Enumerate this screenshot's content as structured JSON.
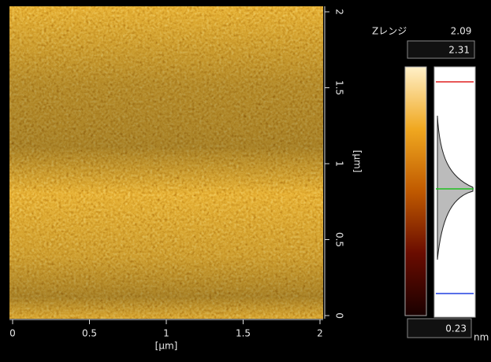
{
  "image": {
    "x_axis": {
      "ticks": [
        "0",
        "0.5",
        "1",
        "1.5",
        "2"
      ],
      "label": "[µm]"
    },
    "y_axis": {
      "ticks": [
        "0",
        "0.5",
        "1",
        "1.5",
        "2"
      ],
      "label": "[µm]"
    }
  },
  "panel": {
    "z_range_label": "Zレンジ",
    "z_range_value": "2.09",
    "max_value": "2.31",
    "min_value": "0.23",
    "unit": "nm"
  }
}
